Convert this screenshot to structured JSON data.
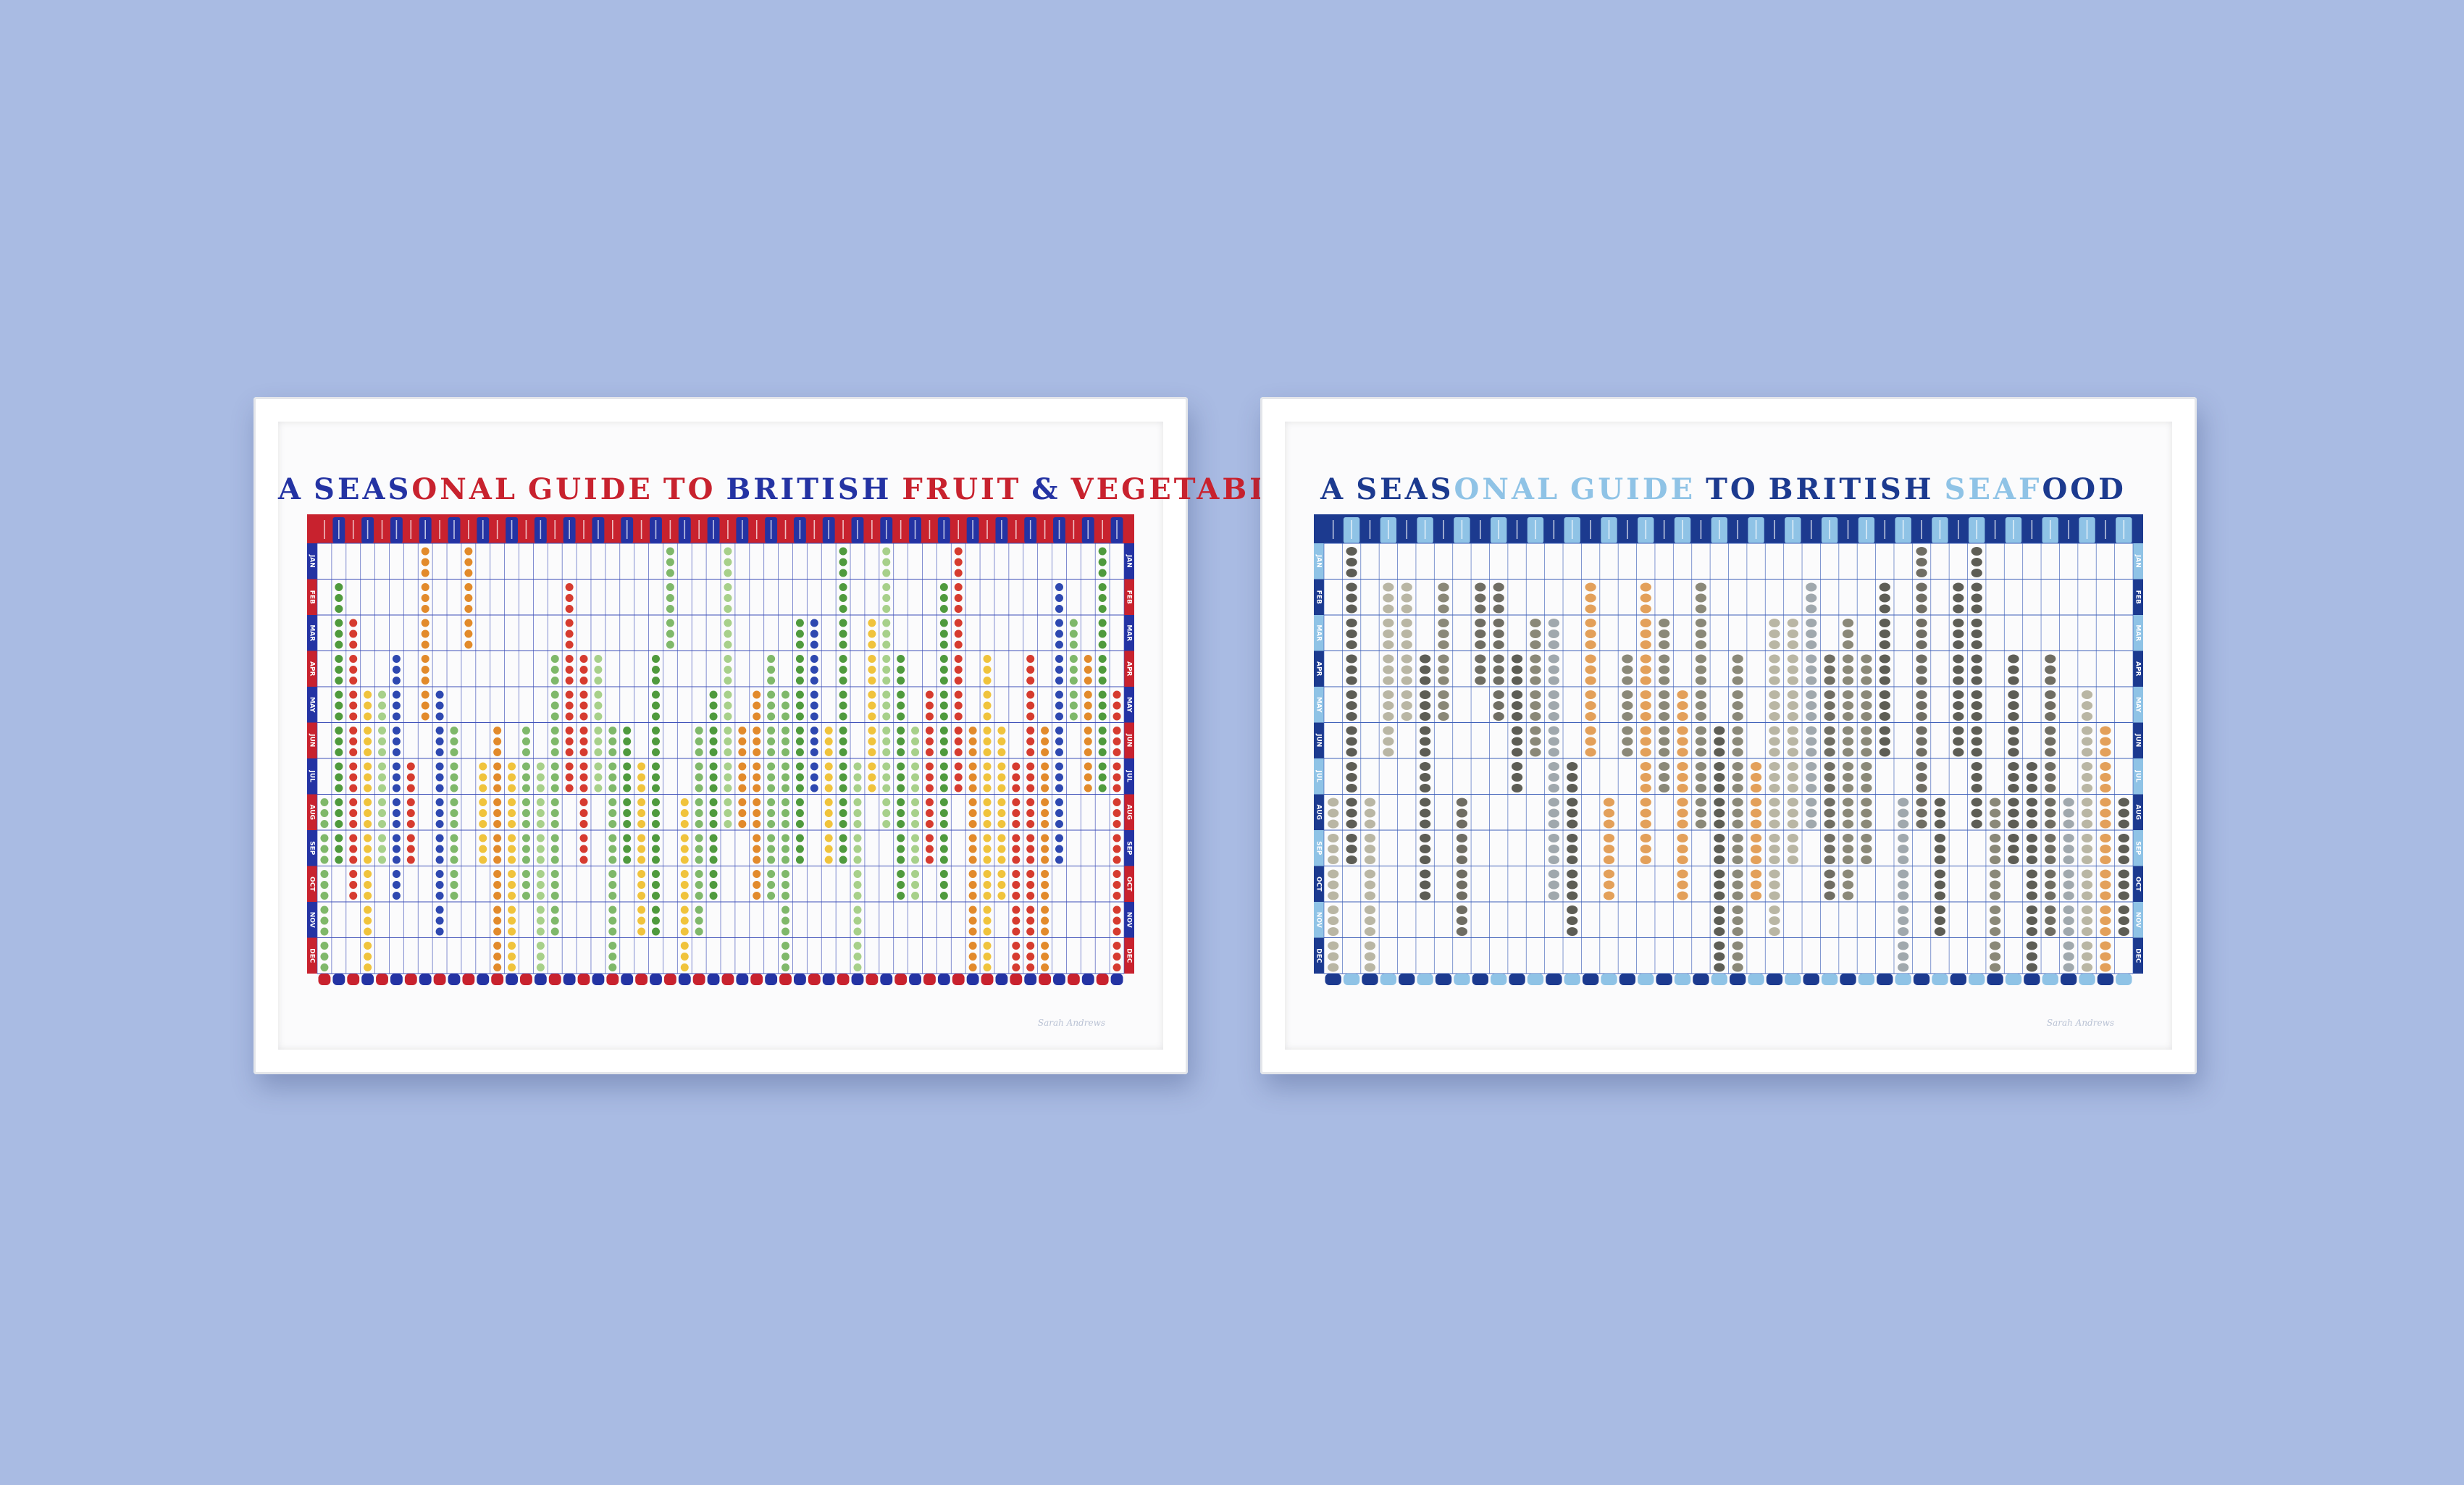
{
  "posters": [
    {
      "id": "fruit-veg",
      "title_words": [
        {
          "text": "A",
          "color": "#2433a3"
        },
        {
          "text": "SEASONAL",
          "mixed": [
            "#2433a3",
            "#c8222e"
          ]
        },
        {
          "text": "GUIDE",
          "color": "#c8222e"
        },
        {
          "text": "TO",
          "color": "#c8222e"
        },
        {
          "text": "BRITISH",
          "color": "#2433a3"
        },
        {
          "text": "FRUIT",
          "color": "#c8222e"
        },
        {
          "text": "&",
          "color": "#2433a3"
        },
        {
          "text": "VEGETABLES",
          "color": "#c8222e"
        }
      ],
      "months": [
        "JAN",
        "FEB",
        "MAR",
        "APR",
        "MAY",
        "JUN",
        "JUL",
        "AUG",
        "SEP",
        "OCT",
        "NOV",
        "DEC"
      ],
      "columns": 56,
      "palette": {
        "header_a": "#c8222e",
        "header_b": "#2433a3",
        "grid": "#3d4fb8",
        "icons": [
          "#4f9a3d",
          "#d63b2f",
          "#f0c33c",
          "#2e48b0",
          "#7fb86a",
          "#e28a2b",
          "#a7d08a"
        ]
      }
    },
    {
      "id": "seafood",
      "title_words": [
        {
          "text": "A",
          "color": "#1c3a8f"
        },
        {
          "text": "SEASONAL",
          "mixed": [
            "#1c3a8f",
            "#8fc3e6"
          ]
        },
        {
          "text": "GUIDE",
          "color": "#8fc3e6"
        },
        {
          "text": "TO",
          "color": "#1c3a8f"
        },
        {
          "text": "BRITISH",
          "color": "#1c3a8f"
        },
        {
          "text": "SEAFOOD",
          "mixed": [
            "#8fc3e6",
            "#1c3a8f"
          ]
        }
      ],
      "months": [
        "JAN",
        "FEB",
        "MAR",
        "APR",
        "MAY",
        "JUN",
        "JUL",
        "AUG",
        "SEP",
        "OCT",
        "NOV",
        "DEC"
      ],
      "columns": 44,
      "palette": {
        "header_a": "#1c3a8f",
        "header_b": "#8fc3e6",
        "grid": "#3d5fb8",
        "icons": [
          "#8a8878",
          "#e3a05a",
          "#6f6d63",
          "#b9b6a4",
          "#a0a8ad",
          "#5d5d55"
        ]
      }
    }
  ],
  "signature": "Sarah Andrews"
}
